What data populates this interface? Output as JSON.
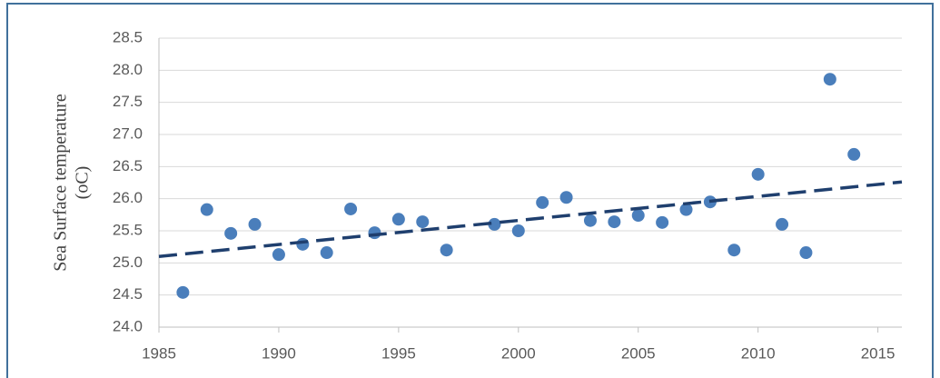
{
  "chart_data": {
    "type": "scatter",
    "y_label": [
      "Sea Surface temperature",
      "(oC)"
    ],
    "series": [
      {
        "color": "#4a7ebb",
        "x": [
          1986,
          1987,
          1988,
          1989,
          1990,
          1991,
          1992,
          1993,
          1994,
          1995,
          1996,
          1997,
          1999,
          2000,
          2001,
          2002,
          2003,
          2004,
          2005,
          2006,
          2007,
          2008,
          2009,
          2010,
          2011,
          2012,
          2013,
          2014
        ],
        "values": [
          24.54,
          25.83,
          25.46,
          25.6,
          25.13,
          25.29,
          25.16,
          25.84,
          25.47,
          25.68,
          25.64,
          25.2,
          25.6,
          25.5,
          25.94,
          26.02,
          25.66,
          25.64,
          25.74,
          25.63,
          25.83,
          25.95,
          25.2,
          26.38,
          25.6,
          25.16,
          27.86,
          26.69
        ]
      }
    ],
    "trendline": {
      "color": "#1f3f6e",
      "x": [
        1985,
        2016
      ],
      "values": [
        25.1,
        26.26
      ]
    },
    "xlim": [
      1985,
      2016
    ],
    "xticks": [
      1985,
      1990,
      1995,
      2000,
      2005,
      2010,
      2015
    ],
    "ylim": [
      24.0,
      28.5
    ],
    "yticks": [
      {
        "value": 24.0,
        "label": "24.0"
      },
      {
        "value": 24.5,
        "label": "24.5"
      },
      {
        "value": 25.0,
        "label": "25.0"
      },
      {
        "value": 25.5,
        "label": "25.5"
      },
      {
        "value": 26.0,
        "label": "26.0"
      },
      {
        "value": 26.5,
        "label": "26.5"
      },
      {
        "value": 27.0,
        "label": "27.0"
      },
      {
        "value": 27.5,
        "label": "27.5"
      },
      {
        "value": 28.0,
        "label": "28.0"
      },
      {
        "value": 28.5,
        "label": "28.5"
      }
    ],
    "grid": true
  }
}
